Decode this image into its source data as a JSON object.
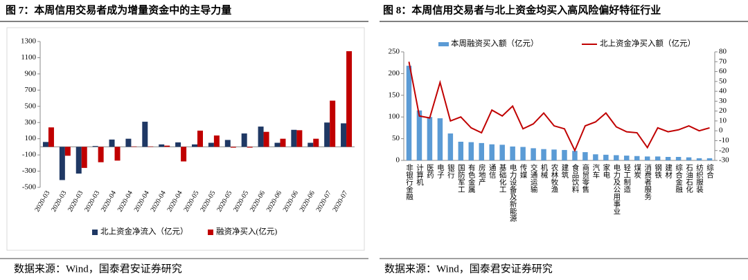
{
  "chart_data": [
    {
      "type": "bar",
      "title": "图 7：本周信用交易者成为增量资金中的主导力量",
      "source": "数据来源：Wind，国泰君安证券研究",
      "categories": [
        "2020-03",
        "2020-03",
        "2020-03",
        "2020-03",
        "2020-04",
        "2020-04",
        "2020-04",
        "2020-04",
        "2020-04",
        "2020-05",
        "2020-05",
        "2020-05",
        "2020-05",
        "2020-06",
        "2020-06",
        "2020-06",
        "2020-06",
        "2020-07",
        "2020-07"
      ],
      "series": [
        {
          "name": "北上资金净流入（亿元）",
          "color": "#1f3864",
          "values": [
            60,
            -410,
            -330,
            10,
            90,
            100,
            310,
            30,
            55,
            30,
            50,
            85,
            165,
            250,
            50,
            210,
            50,
            300,
            290
          ]
        },
        {
          "name": "融资净买入(亿元)",
          "color": "#c00000",
          "values": [
            240,
            -110,
            -260,
            -190,
            -170,
            5,
            5,
            15,
            -180,
            200,
            140,
            -10,
            -10,
            185,
            100,
            205,
            100,
            570,
            1180
          ]
        }
      ],
      "ylim": [
        -500,
        1300
      ],
      "yticks": [
        -500,
        -300,
        -100,
        100,
        300,
        500,
        700,
        900,
        1100,
        1300
      ]
    },
    {
      "type": "combo",
      "title": "图 8：本周信用交易者与北上资金均买入高风险偏好特征行业",
      "source": "数据来源：Wind，国泰君安证券研究",
      "categories": [
        "非银行金融",
        "计算机",
        "医药",
        "电子",
        "银行",
        "国防军工",
        "有色金属",
        "房地产",
        "通信",
        "基础化工",
        "电力设备及新能源",
        "传媒",
        "交通运输",
        "机械",
        "农林牧渔",
        "建筑",
        "食品饮料",
        "商贸零售",
        "汽车",
        "家电",
        "电力及公用事业",
        "轻工制造",
        "煤炭",
        "消费者服务",
        "钢铁",
        "建材",
        "综合金融",
        "石油石化",
        "纺织服装",
        "综合"
      ],
      "series": [
        {
          "name": "本周融资买入额（亿元）",
          "color": "#5b9bd5",
          "values": [
            218,
            115,
            100,
            97,
            62,
            43,
            42,
            40,
            37,
            36,
            32,
            31,
            28,
            26,
            25,
            24,
            22,
            19,
            14,
            13,
            12,
            11,
            10,
            9,
            9,
            8,
            8,
            7,
            5,
            5
          ]
        },
        {
          "name": "北上资金净买入额（亿元）",
          "color": "#c00000",
          "axis": "y2",
          "values": [
            70,
            15,
            13,
            49,
            10,
            14,
            3,
            -2,
            21,
            15,
            25,
            2,
            7,
            18,
            5,
            2,
            -20,
            5,
            9,
            18,
            4,
            -1,
            -2,
            -17,
            3,
            -1,
            1,
            5,
            0,
            3
          ]
        }
      ],
      "ylim": [
        0,
        250
      ],
      "yticks": [
        0,
        50,
        100,
        150,
        200,
        250
      ],
      "y2lim": [
        -30,
        80
      ],
      "y2ticks": [
        -30,
        -20,
        -10,
        0,
        10,
        20,
        30,
        40,
        50,
        60,
        70,
        80
      ]
    }
  ]
}
